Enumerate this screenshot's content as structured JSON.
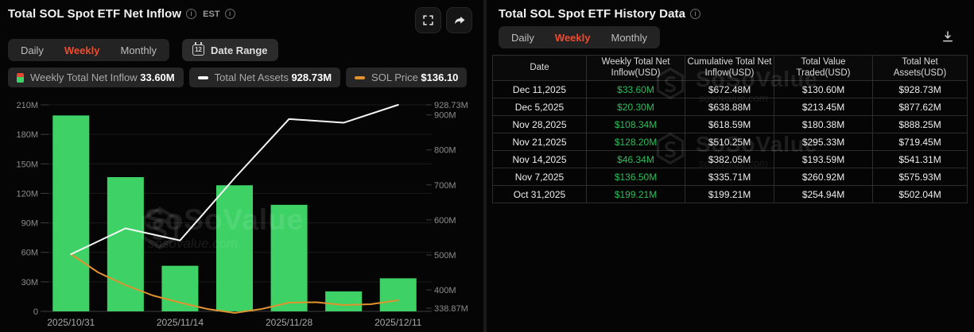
{
  "brand": {
    "watermark_name": "SoSoValue",
    "watermark_domain": "sosovalue.com"
  },
  "colors": {
    "accent_red": "#ee4b2e",
    "bar_green": "#3ed266",
    "value_green": "#2ebd59",
    "line_white": "#f5f5f5",
    "line_orange": "#e0922f"
  },
  "left_panel": {
    "title": "Total SOL Spot ETF Net Inflow",
    "timezone": "EST",
    "tabs": [
      {
        "label": "Daily",
        "active": false
      },
      {
        "label": "Weekly",
        "active": true
      },
      {
        "label": "Monthly",
        "active": false
      }
    ],
    "date_range": {
      "label": "Date Range",
      "icon_text": "12"
    },
    "legend": [
      {
        "label": "Weekly Total Net Inflow",
        "value": "33.60M",
        "icon": "inflow-bar-icon"
      },
      {
        "label": "Total Net Assets",
        "value": "928.73M",
        "icon": "assets-line-icon"
      },
      {
        "label": "SOL Price",
        "value": "$136.10",
        "icon": "price-line-icon"
      }
    ]
  },
  "chart_data": {
    "type": "bar",
    "title": "Total SOL Spot ETF Net Inflow (Weekly)",
    "categories": [
      "2025/10/31",
      "2025/11/07",
      "2025/11/14",
      "2025/11/21",
      "2025/11/28",
      "2025/12/05",
      "2025/12/11"
    ],
    "x_axis_visible_labels": [
      "2025/10/31",
      "2025/11/14",
      "2025/11/28",
      "2025/12/11"
    ],
    "series": [
      {
        "name": "Weekly Total Net Inflow",
        "type": "bar",
        "axis": "left",
        "unit": "USD millions",
        "color": "#3ed266",
        "values": [
          199.21,
          136.5,
          46.34,
          128.2,
          108.34,
          20.3,
          33.6
        ]
      },
      {
        "name": "Total Net Assets",
        "type": "line",
        "axis": "right",
        "unit": "USD millions",
        "color": "#f5f5f5",
        "values": [
          502.04,
          575.93,
          541.31,
          719.45,
          888.25,
          877.62,
          928.73
        ]
      },
      {
        "name": "SOL Price",
        "type": "line",
        "axis": "hidden",
        "unit": "USD",
        "color": "#e0922f",
        "visible_value": "$136.10"
      }
    ],
    "left_axis": {
      "range": [
        0,
        210
      ],
      "ticks": [
        {
          "label": "210M",
          "value": 210
        },
        {
          "label": "180M",
          "value": 180
        },
        {
          "label": "150M",
          "value": 150
        },
        {
          "label": "120M",
          "value": 120
        },
        {
          "label": "90M",
          "value": 90
        },
        {
          "label": "60M",
          "value": 60
        },
        {
          "label": "30M",
          "value": 30
        },
        {
          "label": "0",
          "value": 0
        }
      ]
    },
    "right_axis": {
      "range": [
        338.87,
        928.73
      ],
      "ticks": [
        {
          "label": "928.73M",
          "value": 928.73
        },
        {
          "label": "900M",
          "value": 900
        },
        {
          "label": "800M",
          "value": 800
        },
        {
          "label": "700M",
          "value": 700
        },
        {
          "label": "600M",
          "value": 600
        },
        {
          "label": "500M",
          "value": 500
        },
        {
          "label": "400M",
          "value": 400
        },
        {
          "label": "338.87M",
          "value": 338.87
        }
      ]
    },
    "grid": true,
    "legend_position": "top"
  },
  "right_panel": {
    "title": "Total SOL Spot ETF History Data",
    "tabs": [
      {
        "label": "Daily",
        "active": false
      },
      {
        "label": "Weekly",
        "active": true
      },
      {
        "label": "Monthly",
        "active": false
      }
    ],
    "table": {
      "headers": [
        "Date",
        "Weekly Total Net Inflow(USD)",
        "Cumulative Total Net Inflow(USD)",
        "Total Value Traded(USD)",
        "Total Net Assets(USD)"
      ],
      "rows": [
        {
          "date": "Dec 11,2025",
          "inflow": "$33.60M",
          "cumulative": "$672.48M",
          "traded": "$130.60M",
          "assets": "$928.73M"
        },
        {
          "date": "Dec 5,2025",
          "inflow": "$20.30M",
          "cumulative": "$638.88M",
          "traded": "$213.45M",
          "assets": "$877.62M"
        },
        {
          "date": "Nov 28,2025",
          "inflow": "$108.34M",
          "cumulative": "$618.59M",
          "traded": "$180.38M",
          "assets": "$888.25M"
        },
        {
          "date": "Nov 21,2025",
          "inflow": "$128.20M",
          "cumulative": "$510.25M",
          "traded": "$295.33M",
          "assets": "$719.45M"
        },
        {
          "date": "Nov 14,2025",
          "inflow": "$46.34M",
          "cumulative": "$382.05M",
          "traded": "$193.59M",
          "assets": "$541.31M"
        },
        {
          "date": "Nov 7,2025",
          "inflow": "$136.50M",
          "cumulative": "$335.71M",
          "traded": "$260.92M",
          "assets": "$575.93M"
        },
        {
          "date": "Oct 31,2025",
          "inflow": "$199.21M",
          "cumulative": "$199.21M",
          "traded": "$254.94M",
          "assets": "$502.04M"
        }
      ]
    }
  }
}
